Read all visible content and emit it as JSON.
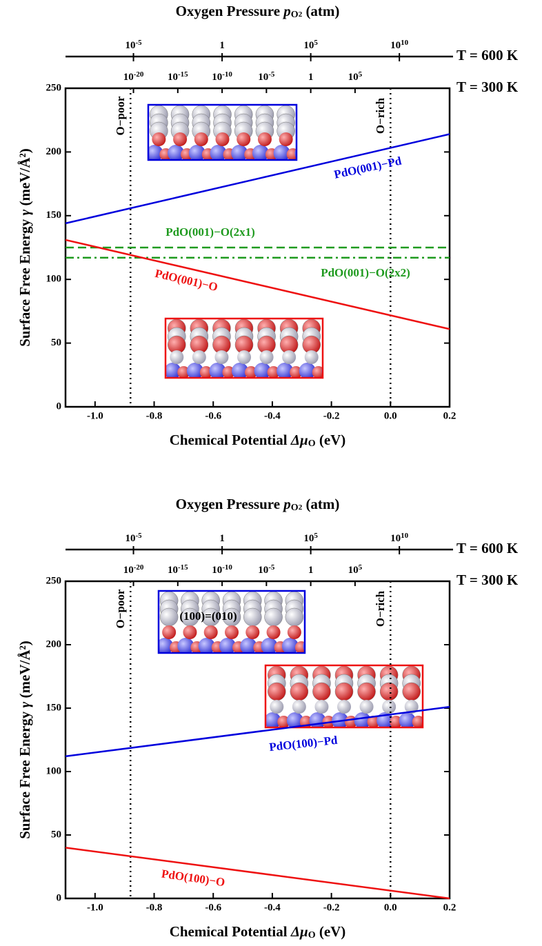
{
  "chart_data": [
    {
      "type": "line",
      "title": {
        "text": "Oxygen Pressure",
        "symbol": "p",
        "sub": "O",
        "subsub": "2",
        "unit": "(atm)"
      },
      "xlabel": {
        "text": "Chemical Potential",
        "symbol": "Δμ",
        "sub": "O",
        "unit": "(eV)"
      },
      "ylabel": {
        "text": "Surface Free Energy",
        "symbol": "γ",
        "unit": "(meV/Å²)"
      },
      "x": [
        -1.1,
        0.2
      ],
      "xlim": [
        -1.1,
        0.2
      ],
      "ylim": [
        0,
        250
      ],
      "xticks": [
        {
          "value": -1.0,
          "label": "-1.0"
        },
        {
          "value": -0.8,
          "label": "-0.8"
        },
        {
          "value": -0.6,
          "label": "-0.6"
        },
        {
          "value": -0.4,
          "label": "-0.4"
        },
        {
          "value": -0.2,
          "label": "-0.2"
        },
        {
          "value": 0.0,
          "label": "0.0"
        },
        0.2
      ],
      "yticks": [
        0,
        50,
        100,
        150,
        200,
        250
      ],
      "top_axes": [
        {
          "label": "T = 600 K",
          "ticks": [
            {
              "value": -0.87,
              "label": "10",
              "exponent": "-5"
            },
            {
              "value": -0.57,
              "label": "1"
            },
            {
              "value": -0.27,
              "label": "10",
              "exponent": "5"
            },
            {
              "value": 0.03,
              "label": "10",
              "exponent": "10"
            }
          ]
        },
        {
          "label": "T = 300 K",
          "ticks": [
            {
              "value": -0.87,
              "label": "10",
              "exponent": "-20"
            },
            {
              "value": -0.72,
              "label": "10",
              "exponent": "-15"
            },
            {
              "value": -0.57,
              "label": "10",
              "exponent": "-10"
            },
            {
              "value": -0.42,
              "label": "10",
              "exponent": "-5"
            },
            {
              "value": -0.27,
              "label": "1"
            },
            {
              "value": -0.12,
              "label": "10",
              "exponent": "5"
            }
          ]
        }
      ],
      "vlines": [
        {
          "value": -0.88,
          "label": "O−poor"
        },
        {
          "value": 0.0,
          "label": "O−rich"
        }
      ],
      "series": [
        {
          "name": "PdO(001)−Pd",
          "color": "#0000dd",
          "style": "solid",
          "values": [
            144,
            214
          ]
        },
        {
          "name": "PdO(001)−O(2x1)",
          "color": "#1e9a1e",
          "style": "dashed",
          "values": [
            125,
            125
          ]
        },
        {
          "name": "PdO(001)−O(2x2)",
          "color": "#1e9a1e",
          "style": "dashdot",
          "values": [
            117,
            117
          ]
        },
        {
          "name": "PdO(001)−O",
          "color": "#ee1111",
          "style": "solid",
          "values": [
            131,
            61
          ]
        }
      ]
    },
    {
      "type": "line",
      "title": {
        "text": "Oxygen Pressure",
        "symbol": "p",
        "sub": "O",
        "subsub": "2",
        "unit": "(atm)"
      },
      "xlabel": {
        "text": "Chemical Potential",
        "symbol": "Δμ",
        "sub": "O",
        "unit": "(eV)"
      },
      "ylabel": {
        "text": "Surface Free Energy",
        "symbol": "γ",
        "unit": "(meV/Å²)"
      },
      "x": [
        -1.1,
        0.2
      ],
      "xlim": [
        -1.1,
        0.2
      ],
      "ylim": [
        0,
        250
      ],
      "xticks": [
        {
          "value": -1.0,
          "label": "-1.0"
        },
        {
          "value": -0.8,
          "label": "-0.8"
        },
        {
          "value": -0.6,
          "label": "-0.6"
        },
        {
          "value": -0.4,
          "label": "-0.4"
        },
        {
          "value": -0.2,
          "label": "-0.2"
        },
        {
          "value": 0.0,
          "label": "0.0"
        },
        0.2
      ],
      "yticks": [
        0,
        50,
        100,
        150,
        200,
        250
      ],
      "top_axes": [
        {
          "label": "T = 600 K",
          "ticks": [
            {
              "value": -0.87,
              "label": "10",
              "exponent": "-5"
            },
            {
              "value": -0.57,
              "label": "1"
            },
            {
              "value": -0.27,
              "label": "10",
              "exponent": "5"
            },
            {
              "value": 0.03,
              "label": "10",
              "exponent": "10"
            }
          ]
        },
        {
          "label": "T = 300 K",
          "ticks": [
            {
              "value": -0.87,
              "label": "10",
              "exponent": "-20"
            },
            {
              "value": -0.72,
              "label": "10",
              "exponent": "-15"
            },
            {
              "value": -0.57,
              "label": "10",
              "exponent": "-10"
            },
            {
              "value": -0.42,
              "label": "10",
              "exponent": "-5"
            },
            {
              "value": -0.27,
              "label": "1"
            },
            {
              "value": -0.12,
              "label": "10",
              "exponent": "5"
            }
          ]
        }
      ],
      "vlines": [
        {
          "value": -0.88,
          "label": "O−poor"
        },
        {
          "value": 0.0,
          "label": "O−rich"
        }
      ],
      "annotations": [
        {
          "text": "(100)=(010)"
        }
      ],
      "series": [
        {
          "name": "PdO(100)−Pd",
          "color": "#0000dd",
          "style": "solid",
          "values": [
            112,
            151
          ]
        },
        {
          "name": "PdO(100)−O",
          "color": "#ee1111",
          "style": "solid",
          "values": [
            40,
            0
          ]
        }
      ]
    }
  ]
}
